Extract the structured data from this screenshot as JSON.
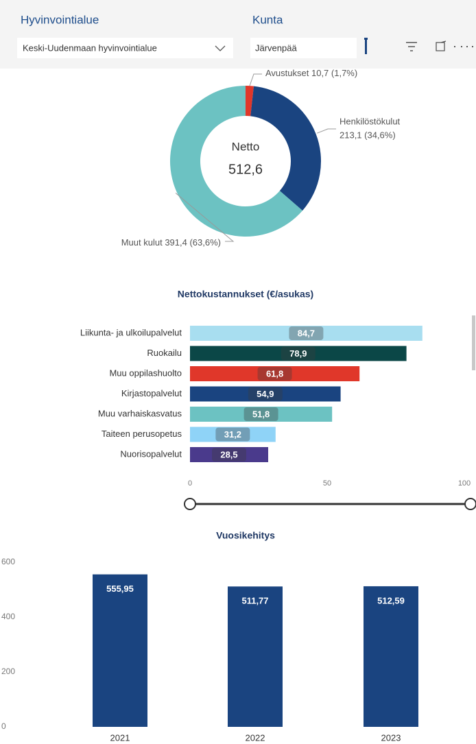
{
  "filters": [
    {
      "label": "Hyvinvointialue",
      "value": "Keski-Uudenmaan hyvinvointialue"
    },
    {
      "label": "Kunta",
      "value": "Järvenpää"
    }
  ],
  "chart_data": [
    {
      "type": "donut",
      "center_label": "Netto",
      "center_value": {
        "value": 512.6,
        "label": "512,6"
      },
      "categories": [
        "Avustukset",
        "Henkilöstökulut",
        "Muut kulut"
      ],
      "values": [
        10.7,
        213.1,
        391.4
      ],
      "value_labels": [
        "10,7 (1,7%)",
        "213,1 (34,6%)",
        "391,4 (63,6%)"
      ],
      "colors": [
        "#e0372a",
        "#1a4480",
        "#6cc2c2"
      ]
    },
    {
      "type": "hbar",
      "title": "Nettokustannukset (€/asukas)",
      "categories": [
        "Liikunta- ja ulkoilupalvelut",
        "Ruokailu",
        "Muu oppilashuolto",
        "Kirjastopalvelut",
        "Muu varhaiskasvatus",
        "Taiteen perusopetus",
        "Nuorisopalvelut"
      ],
      "values": [
        84.7,
        78.9,
        61.8,
        54.9,
        51.8,
        31.2,
        28.5
      ],
      "value_labels": [
        "84,7",
        "78,9",
        "61,8",
        "54,9",
        "51,8",
        "31,2",
        "28,5"
      ],
      "colors": [
        "#a8def0",
        "#0b4747",
        "#e0372a",
        "#1a4480",
        "#6cc2c2",
        "#8fd3f7",
        "#4a3a8c"
      ],
      "xlim": [
        0,
        100
      ],
      "xticks": [
        0,
        50,
        100
      ]
    },
    {
      "type": "bar",
      "title": "Vuosikehitys",
      "categories": [
        "2021",
        "2022",
        "2023"
      ],
      "values": [
        555.95,
        511.77,
        512.59
      ],
      "value_labels": [
        "555,95",
        "511,77",
        "512,59"
      ],
      "color": "#1a4480",
      "ylim": [
        0,
        600
      ],
      "yticks": [
        0,
        200,
        400,
        600
      ]
    }
  ]
}
